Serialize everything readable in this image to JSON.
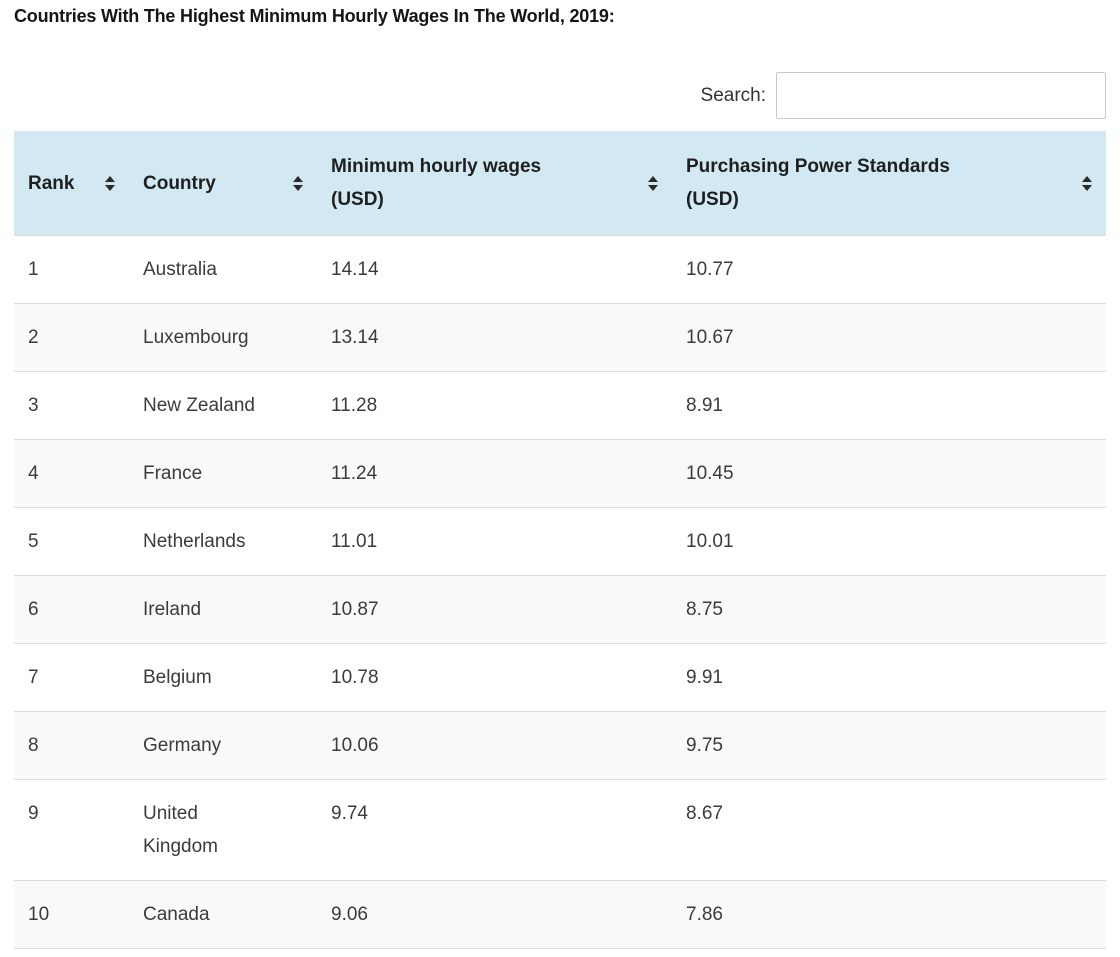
{
  "page": {
    "title": "Countries With The Highest Minimum Hourly Wages In The World, 2019:"
  },
  "search": {
    "label": "Search:",
    "value": "",
    "placeholder": ""
  },
  "table": {
    "columns": [
      {
        "id": "rank",
        "label": "Rank",
        "sort_icon": "sort-both"
      },
      {
        "id": "country",
        "label": "Country",
        "sort_icon": "sort-both"
      },
      {
        "id": "wage",
        "label": "Minimum hourly wages\n(USD)",
        "sort_icon": "sort-both"
      },
      {
        "id": "pps",
        "label": "Purchasing Power Standards\n(USD)",
        "sort_icon": "sort-both"
      }
    ],
    "rows": [
      {
        "rank": "1",
        "country": "Australia",
        "wage": "14.14",
        "pps": "10.77"
      },
      {
        "rank": "2",
        "country": "Luxembourg",
        "wage": "13.14",
        "pps": "10.67"
      },
      {
        "rank": "3",
        "country": "New Zealand",
        "wage": "11.28",
        "pps": "8.91"
      },
      {
        "rank": "4",
        "country": "France",
        "wage": "11.24",
        "pps": "10.45"
      },
      {
        "rank": "5",
        "country": "Netherlands",
        "wage": "11.01",
        "pps": "10.01"
      },
      {
        "rank": "6",
        "country": "Ireland",
        "wage": "10.87",
        "pps": "8.75"
      },
      {
        "rank": "7",
        "country": "Belgium",
        "wage": "10.78",
        "pps": "9.91"
      },
      {
        "rank": "8",
        "country": "Germany",
        "wage": "10.06",
        "pps": "9.75"
      },
      {
        "rank": "9",
        "country": "United Kingdom",
        "wage": "9.74",
        "pps": "8.67"
      },
      {
        "rank": "10",
        "country": "Canada",
        "wage": "9.06",
        "pps": "7.86"
      }
    ]
  },
  "colors": {
    "header_bg": "#d2e9f3",
    "row_alt_bg": "#f9f9f9",
    "row_border": "#dcdcdc",
    "header_text": "#1f1f1f",
    "cell_text": "#3b3b3b",
    "title_text": "#151515",
    "sort_icon": "#2b2b2b",
    "input_border": "#c9c9c9"
  }
}
